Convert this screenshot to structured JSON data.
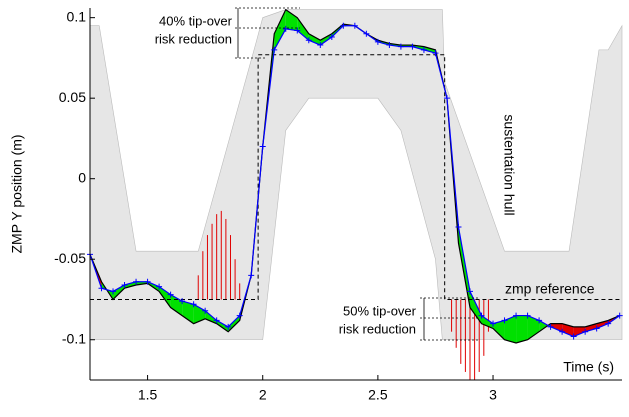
{
  "chart_data": {
    "type": "line",
    "xlabel": "Time (s)",
    "ylabel": "ZMP Y position (m)",
    "xlim": [
      1.25,
      3.56
    ],
    "ylim": [
      -0.125,
      0.106
    ],
    "xticks": [
      1.5,
      2,
      2.5,
      3
    ],
    "yticks": [
      -0.1,
      -0.05,
      0,
      0.05,
      0.1
    ],
    "x": [
      1.25,
      1.3,
      1.35,
      1.4,
      1.45,
      1.5,
      1.55,
      1.6,
      1.65,
      1.7,
      1.75,
      1.8,
      1.85,
      1.9,
      1.95,
      2.0,
      2.05,
      2.1,
      2.15,
      2.2,
      2.25,
      2.3,
      2.35,
      2.4,
      2.45,
      2.5,
      2.55,
      2.6,
      2.65,
      2.7,
      2.75,
      2.8,
      2.85,
      2.9,
      2.95,
      3.0,
      3.05,
      3.1,
      3.15,
      3.2,
      3.25,
      3.3,
      3.35,
      3.4,
      3.45,
      3.5,
      3.55
    ],
    "series": [
      {
        "color": "#000000",
        "values": [
          -0.047,
          -0.064,
          -0.075,
          -0.068,
          -0.066,
          -0.065,
          -0.07,
          -0.08,
          -0.085,
          -0.09,
          -0.087,
          -0.09,
          -0.095,
          -0.088,
          -0.06,
          0.02,
          0.09,
          0.105,
          0.1,
          0.09,
          0.086,
          0.09,
          0.096,
          0.095,
          0.09,
          0.086,
          0.084,
          0.083,
          0.083,
          0.082,
          0.08,
          0.05,
          -0.04,
          -0.08,
          -0.09,
          -0.093,
          -0.1,
          -0.102,
          -0.1,
          -0.095,
          -0.09,
          -0.09,
          -0.092,
          -0.092,
          -0.09,
          -0.088,
          -0.085
        ]
      },
      {
        "color": "#0000ff",
        "marker": "+",
        "values": [
          -0.047,
          -0.068,
          -0.07,
          -0.066,
          -0.064,
          -0.064,
          -0.067,
          -0.072,
          -0.076,
          -0.078,
          -0.082,
          -0.088,
          -0.092,
          -0.085,
          -0.06,
          0.02,
          0.08,
          0.093,
          0.092,
          0.086,
          0.083,
          0.088,
          0.095,
          0.095,
          0.09,
          0.085,
          0.083,
          0.082,
          0.082,
          0.08,
          0.078,
          0.05,
          -0.03,
          -0.07,
          -0.085,
          -0.09,
          -0.088,
          -0.085,
          -0.085,
          -0.088,
          -0.092,
          -0.095,
          -0.098,
          -0.095,
          -0.093,
          -0.09,
          -0.085
        ]
      }
    ],
    "fill_better_color": "#00e000",
    "fill_worse_color": "#e00000",
    "reference": {
      "name": "zmp reference",
      "color": "#000000",
      "x": [
        1.25,
        1.98,
        1.98,
        2.79,
        2.79,
        3.56
      ],
      "values": [
        -0.075,
        -0.075,
        0.077,
        0.077,
        -0.075,
        -0.075
      ]
    },
    "hull": {
      "name": "sustentation hull",
      "color": "#e6e6e6",
      "x": [
        1.25,
        1.29,
        1.45,
        1.72,
        1.97,
        2.0,
        2.1,
        2.2,
        2.5,
        2.6,
        2.75,
        2.78,
        2.79,
        3.05,
        3.33,
        3.46,
        3.5,
        3.56
      ],
      "upper": [
        0.095,
        0.095,
        -0.045,
        -0.045,
        0.084,
        0.1,
        0.105,
        0.105,
        0.105,
        0.105,
        0.105,
        0.105,
        0.06,
        -0.045,
        -0.045,
        0.08,
        0.08,
        0.095
      ],
      "lower": [
        -0.1,
        -0.1,
        -0.1,
        -0.1,
        -0.1,
        -0.1,
        0.03,
        0.05,
        0.05,
        0.03,
        -0.05,
        -0.1,
        -0.1,
        -0.1,
        -0.1,
        -0.1,
        -0.1,
        -0.1
      ]
    },
    "impulses": {
      "color": "#e00000",
      "x": [
        1.72,
        1.74,
        1.76,
        1.78,
        1.8,
        1.82,
        1.84,
        1.86,
        1.88,
        1.9,
        2.82,
        2.84,
        2.86,
        2.88,
        2.9,
        2.92,
        2.94,
        2.96,
        2.98
      ],
      "values": [
        -0.06,
        -0.045,
        -0.035,
        -0.028,
        -0.022,
        -0.02,
        -0.025,
        -0.035,
        -0.05,
        -0.065,
        -0.095,
        -0.105,
        -0.115,
        -0.12,
        -0.125,
        -0.125,
        -0.12,
        -0.11,
        -0.095
      ]
    },
    "annotations": [
      {
        "lines": [
          "40% tip-over",
          "risk reduction"
        ]
      },
      {
        "lines": [
          "50% tip-over",
          "risk reduction"
        ]
      }
    ]
  }
}
